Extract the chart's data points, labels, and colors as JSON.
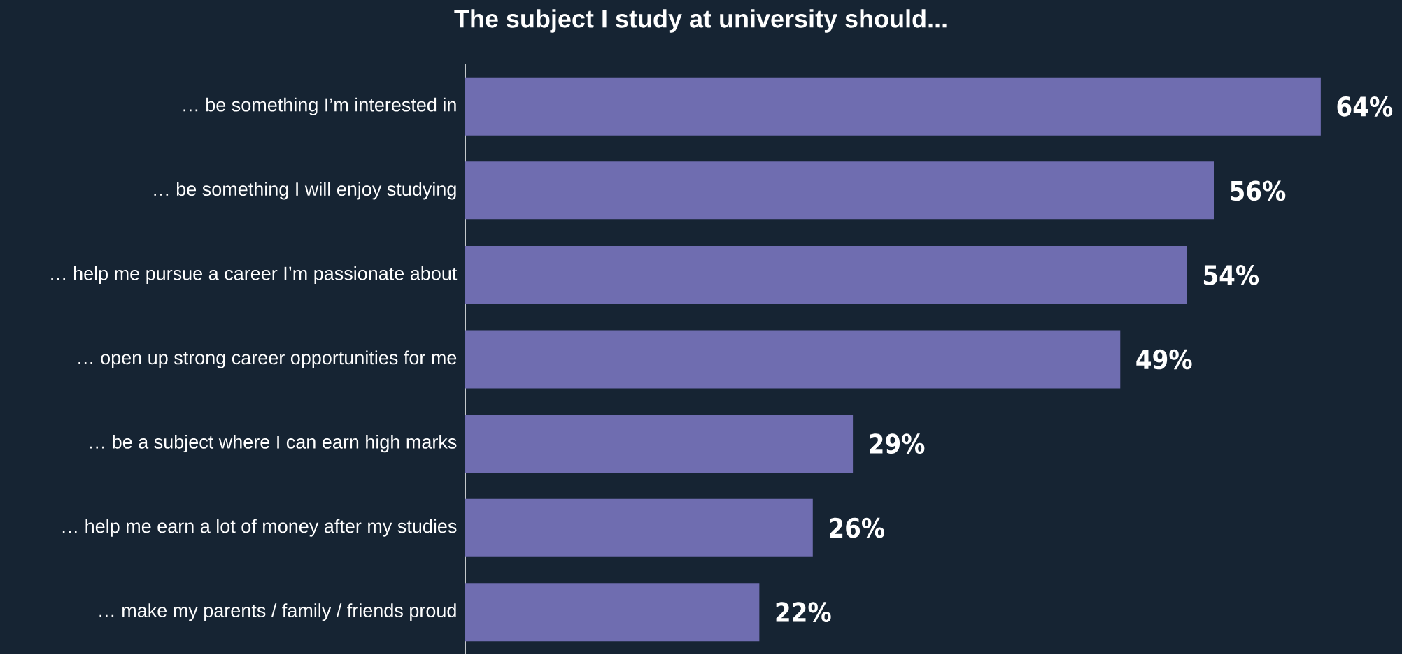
{
  "chart_data": {
    "type": "bar",
    "orientation": "horizontal",
    "title": "The subject I study at university should...",
    "categories": [
      "… be something I’m interested in",
      "… be something I will enjoy studying",
      "… help me pursue a career I’m passionate about",
      "… open up strong career opportunities for me",
      "… be a subject where I can earn high marks",
      "… help me earn a lot of money after my studies",
      "… make my parents / family / friends proud"
    ],
    "values": [
      64,
      56,
      54,
      49,
      29,
      26,
      22
    ],
    "value_labels": [
      "64%",
      "56%",
      "54%",
      "49%",
      "29%",
      "26%",
      "22%"
    ],
    "color": "#6f6db0"
  }
}
